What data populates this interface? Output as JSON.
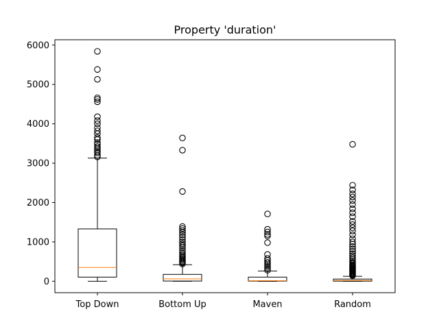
{
  "chart_data": {
    "type": "boxplot",
    "title": "Property 'duration'",
    "xlabel": "",
    "ylabel": "",
    "categories": [
      "Top Down",
      "Bottom Up",
      "Maven",
      "Random"
    ],
    "ylim": [
      -290,
      6135
    ],
    "yticks": [
      0,
      1000,
      2000,
      3000,
      4000,
      5000,
      6000
    ],
    "grid": false,
    "colors": {
      "box": "#000000",
      "median": "#ff7f0e",
      "flier": "#000000"
    },
    "series": [
      {
        "category": "Top Down",
        "whisker_low": 0,
        "q1": 105,
        "median": 350,
        "q3": 1330,
        "whisker_high": 3130,
        "outliers": [
          3160,
          3200,
          3260,
          3300,
          3340,
          3380,
          3420,
          3480,
          3520,
          3600,
          3650,
          3750,
          3820,
          3900,
          4000,
          4080,
          4180,
          4560,
          4620,
          4660,
          5130,
          5380,
          5840
        ]
      },
      {
        "category": "Bottom Up",
        "whisker_low": 0,
        "q1": 5,
        "median": 60,
        "q3": 175,
        "whisker_high": 420,
        "outliers": [
          440,
          470,
          500,
          530,
          560,
          590,
          620,
          650,
          690,
          740,
          790,
          850,
          900,
          950,
          1000,
          1060,
          1120,
          1180,
          1240,
          1290,
          1340,
          1390,
          2280,
          3330,
          3640
        ]
      },
      {
        "category": "Maven",
        "whisker_low": 0,
        "q1": 5,
        "median": 15,
        "q3": 105,
        "whisker_high": 260,
        "outliers": [
          280,
          320,
          360,
          400,
          440,
          480,
          530,
          580,
          680,
          980,
          1150,
          1190,
          1250,
          1320,
          1710
        ]
      },
      {
        "category": "Random",
        "whisker_low": 0,
        "q1": 3,
        "median": 18,
        "q3": 55,
        "whisker_high": 125,
        "outliers": [
          140,
          160,
          180,
          200,
          220,
          240,
          260,
          280,
          300,
          320,
          340,
          360,
          380,
          400,
          420,
          450,
          480,
          520,
          560,
          600,
          650,
          700,
          760,
          820,
          880,
          940,
          1000,
          1080,
          1180,
          1280,
          1360,
          1440,
          1520,
          1640,
          1740,
          1840,
          1950,
          2050,
          2140,
          2220,
          2320,
          2440,
          3480
        ]
      }
    ]
  }
}
